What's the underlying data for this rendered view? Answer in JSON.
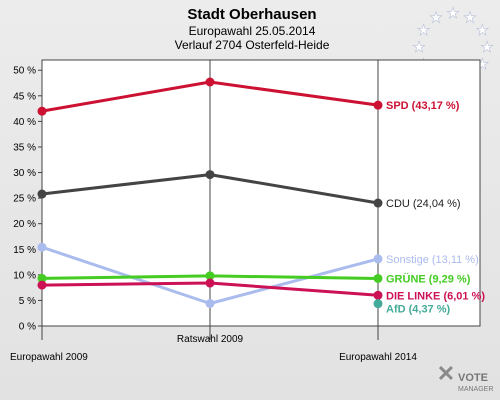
{
  "header": {
    "title": "Stadt Oberhausen",
    "subtitle1": "Europawahl 25.05.2014",
    "subtitle2": "Verlauf 2704 Osterfeld-Heide"
  },
  "logo": {
    "line1": "VOTE",
    "line2": "MANAGER"
  },
  "chart_data": {
    "type": "line",
    "title": "Stadt Oberhausen",
    "subtitle": [
      "Europawahl 25.05.2014",
      "Verlauf 2704 Osterfeld-Heide"
    ],
    "categories": [
      "Europawahl 2009",
      "Ratswahl 2009",
      "Europawahl 2014"
    ],
    "ylim": [
      0,
      52
    ],
    "yticks": [
      0,
      5,
      10,
      15,
      20,
      25,
      30,
      35,
      40,
      45,
      50
    ],
    "ytick_labels": [
      "0 %",
      "5 %",
      "10 %",
      "15 %",
      "20 %",
      "25 %",
      "30 %",
      "35 %",
      "40 %",
      "45 %",
      "50 %"
    ],
    "grid": false,
    "series": [
      {
        "name": "SPD",
        "label": "SPD (43,17 %)",
        "color": "#cc1133",
        "values": [
          42.0,
          47.7,
          43.17
        ]
      },
      {
        "name": "CDU",
        "label": "CDU (24,04 %)",
        "color": "#444444",
        "values": [
          25.8,
          29.6,
          24.04
        ]
      },
      {
        "name": "Sonstige",
        "label": "Sonstige (13,11 %)",
        "color": "#aabbee",
        "values": [
          15.4,
          4.4,
          13.11
        ]
      },
      {
        "name": "GRÜNE",
        "label": "GRÜNE (9,29 %)",
        "color": "#44cc22",
        "values": [
          9.3,
          9.8,
          9.29
        ]
      },
      {
        "name": "DIE LINKE",
        "label": "DIE LINKE (6,01 %)",
        "color": "#cc1155",
        "values": [
          8.0,
          8.4,
          6.01
        ]
      },
      {
        "name": "AfD",
        "label": "AfD (4,37 %)",
        "color": "#44aa99",
        "values": [
          null,
          null,
          4.37
        ]
      }
    ]
  }
}
